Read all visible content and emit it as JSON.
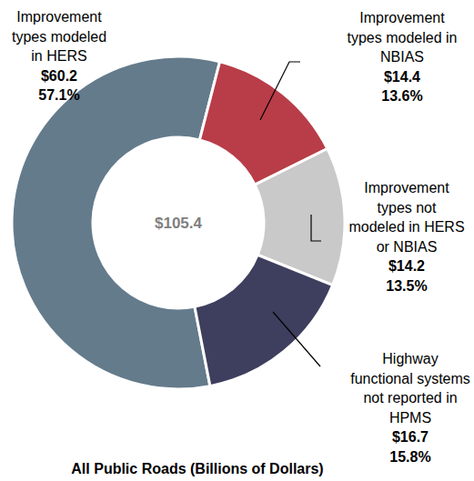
{
  "chart_data": {
    "type": "donut",
    "title": "All Public Roads (Billions of Dollars)",
    "categories": [
      "Improvement\ntypes modeled\nin HERS",
      "Improvement\ntypes modeled in\nNBIAS",
      "Improvement\ntypes not\nmodeled in HERS\nor NBIAS",
      "Highway\nfunctional systems\nnot reported in\nHPMS"
    ],
    "values": [
      60.2,
      14.4,
      14.2,
      16.7
    ],
    "value_labels": [
      "$60.2",
      "$14.4",
      "$14.2",
      "$16.7"
    ],
    "percentages": [
      57.1,
      13.6,
      13.5,
      15.8
    ],
    "percentage_labels": [
      "57.1%",
      "13.6%",
      "13.5%",
      "15.8%"
    ],
    "total": 105.4,
    "total_label": "$105.4",
    "colors": [
      "#647b8c",
      "#b83d48",
      "#c9c9c9",
      "#3e3e5e"
    ],
    "data_labels": true
  }
}
